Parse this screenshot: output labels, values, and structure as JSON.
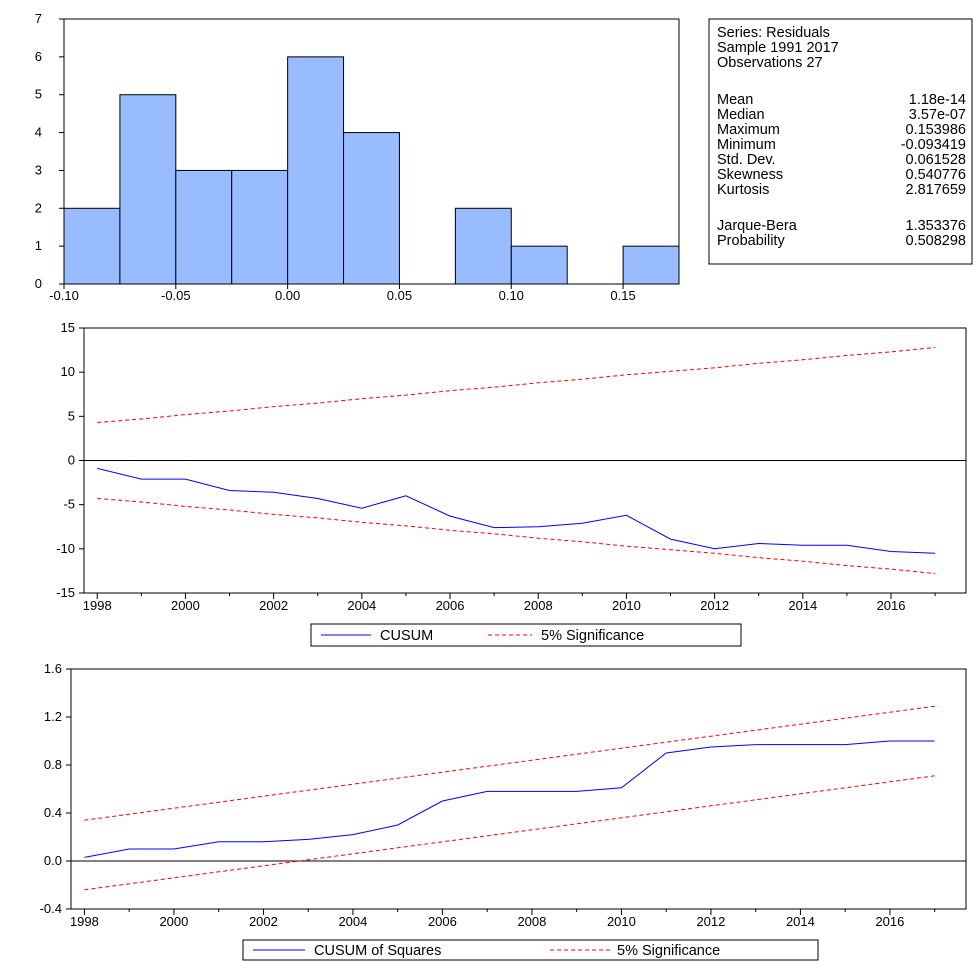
{
  "colors": {
    "bar_fill": "#99bbff",
    "cusum_line": "#0000ff",
    "significance_line": "#ff0000",
    "axis": "#000000",
    "background": "#ffffff"
  },
  "stats_box": {
    "series": "Series: Residuals",
    "sample": "Sample 1991 2017",
    "observations": "Observations 27",
    "rows": [
      {
        "label": "Mean",
        "value": "1.18e-14"
      },
      {
        "label": "Median",
        "value": "3.57e-07"
      },
      {
        "label": "Maximum",
        "value": "0.153986"
      },
      {
        "label": "Minimum",
        "value": "-0.093419"
      },
      {
        "label": "Std. Dev.",
        "value": "0.061528"
      },
      {
        "label": "Skewness",
        "value": "0.540776"
      },
      {
        "label": "Kurtosis",
        "value": "2.817659"
      }
    ],
    "test_rows": [
      {
        "label": "Jarque-Bera",
        "value": "1.353376"
      },
      {
        "label": "Probability",
        "value": "0.508298"
      }
    ]
  },
  "chart_data": [
    {
      "type": "bar",
      "subtype": "histogram",
      "bin_edges": [
        -0.1,
        -0.075,
        -0.05,
        -0.025,
        0.0,
        0.025,
        0.05,
        0.075,
        0.1,
        0.125,
        0.15,
        0.175
      ],
      "counts": [
        2,
        5,
        3,
        3,
        6,
        4,
        0,
        2,
        1,
        0,
        1
      ],
      "xlim": [
        -0.1,
        0.175
      ],
      "ylim": [
        0,
        7
      ],
      "x_ticks": [
        -0.1,
        -0.05,
        0.0,
        0.05,
        0.1,
        0.15
      ],
      "x_tick_labels": [
        "-0.10",
        "-0.05",
        "0.00",
        "0.05",
        "0.10",
        "0.15"
      ],
      "y_ticks": [
        0,
        1,
        2,
        3,
        4,
        5,
        6,
        7
      ],
      "y_tick_labels": [
        "0",
        "1",
        "2",
        "3",
        "4",
        "5",
        "6",
        "7"
      ],
      "grid": false
    },
    {
      "type": "line",
      "x": [
        1998,
        1999,
        2000,
        2001,
        2002,
        2003,
        2004,
        2005,
        2006,
        2007,
        2008,
        2009,
        2010,
        2011,
        2012,
        2013,
        2014,
        2015,
        2016,
        2017
      ],
      "series": [
        {
          "name": "CUSUM",
          "style": "solid",
          "values": [
            -0.9,
            -2.1,
            -2.1,
            -3.4,
            -3.6,
            -4.3,
            -5.4,
            -4.0,
            -6.3,
            -7.6,
            -7.5,
            -7.1,
            -6.2,
            -8.9,
            -10.0,
            -9.4,
            -9.6,
            -9.6,
            -10.3,
            -10.5
          ]
        },
        {
          "name": "5% Significance",
          "style": "dashed",
          "values": [
            4.3,
            4.7,
            5.2,
            5.6,
            6.1,
            6.5,
            7.0,
            7.4,
            7.9,
            8.3,
            8.8,
            9.2,
            9.7,
            10.1,
            10.5,
            11.0,
            11.4,
            11.9,
            12.3,
            12.8
          ]
        },
        {
          "name": "5% Significance",
          "style": "dashed",
          "values": [
            -4.3,
            -4.7,
            -5.2,
            -5.6,
            -6.1,
            -6.5,
            -7.0,
            -7.4,
            -7.9,
            -8.3,
            -8.8,
            -9.2,
            -9.7,
            -10.1,
            -10.5,
            -11.0,
            -11.4,
            -11.9,
            -12.3,
            -12.8
          ]
        }
      ],
      "xlim": [
        1997.7,
        2017.7
      ],
      "ylim": [
        -15,
        15
      ],
      "x_ticks": [
        1998,
        2000,
        2002,
        2004,
        2006,
        2008,
        2010,
        2012,
        2014,
        2016
      ],
      "x_tick_labels": [
        "1998",
        "2000",
        "2002",
        "2004",
        "2006",
        "2008",
        "2010",
        "2012",
        "2014",
        "2016"
      ],
      "y_ticks": [
        -15,
        -10,
        -5,
        0,
        5,
        10,
        15
      ],
      "y_tick_labels": [
        "-15",
        "-10",
        "-5",
        "0",
        "5",
        "10",
        "15"
      ],
      "zero_line": true,
      "legend": {
        "labels": [
          "CUSUM",
          "5% Significance"
        ],
        "placement": "bottom-center"
      }
    },
    {
      "type": "line",
      "x": [
        1998,
        1999,
        2000,
        2001,
        2002,
        2003,
        2004,
        2005,
        2006,
        2007,
        2008,
        2009,
        2010,
        2011,
        2012,
        2013,
        2014,
        2015,
        2016,
        2017
      ],
      "series": [
        {
          "name": "CUSUM of Squares",
          "style": "solid",
          "values": [
            0.03,
            0.1,
            0.1,
            0.16,
            0.16,
            0.18,
            0.22,
            0.3,
            0.5,
            0.58,
            0.58,
            0.58,
            0.61,
            0.9,
            0.95,
            0.97,
            0.97,
            0.97,
            1.0,
            1.0
          ]
        },
        {
          "name": "5% Significance",
          "style": "dashed",
          "values": [
            0.34,
            0.39,
            0.44,
            0.49,
            0.54,
            0.59,
            0.64,
            0.69,
            0.74,
            0.79,
            0.84,
            0.89,
            0.94,
            0.99,
            1.04,
            1.09,
            1.14,
            1.19,
            1.24,
            1.29
          ]
        },
        {
          "name": "5% Significance",
          "style": "dashed",
          "values": [
            -0.24,
            -0.19,
            -0.14,
            -0.09,
            -0.04,
            0.01,
            0.06,
            0.11,
            0.16,
            0.21,
            0.26,
            0.31,
            0.36,
            0.41,
            0.46,
            0.51,
            0.56,
            0.61,
            0.66,
            0.71
          ]
        }
      ],
      "xlim": [
        1997.7,
        2017.7
      ],
      "ylim": [
        -0.4,
        1.6
      ],
      "x_ticks": [
        1998,
        2000,
        2002,
        2004,
        2006,
        2008,
        2010,
        2012,
        2014,
        2016
      ],
      "x_tick_labels": [
        "1998",
        "2000",
        "2002",
        "2004",
        "2006",
        "2008",
        "2010",
        "2012",
        "2014",
        "2016"
      ],
      "y_ticks": [
        -0.4,
        0.0,
        0.4,
        0.8,
        1.2,
        1.6
      ],
      "y_tick_labels": [
        "-0.4",
        "0.0",
        "0.4",
        "0.8",
        "1.2",
        "1.6"
      ],
      "zero_line": true,
      "legend": {
        "labels": [
          "CUSUM of Squares",
          "5% Significance"
        ],
        "placement": "bottom-center"
      }
    }
  ]
}
